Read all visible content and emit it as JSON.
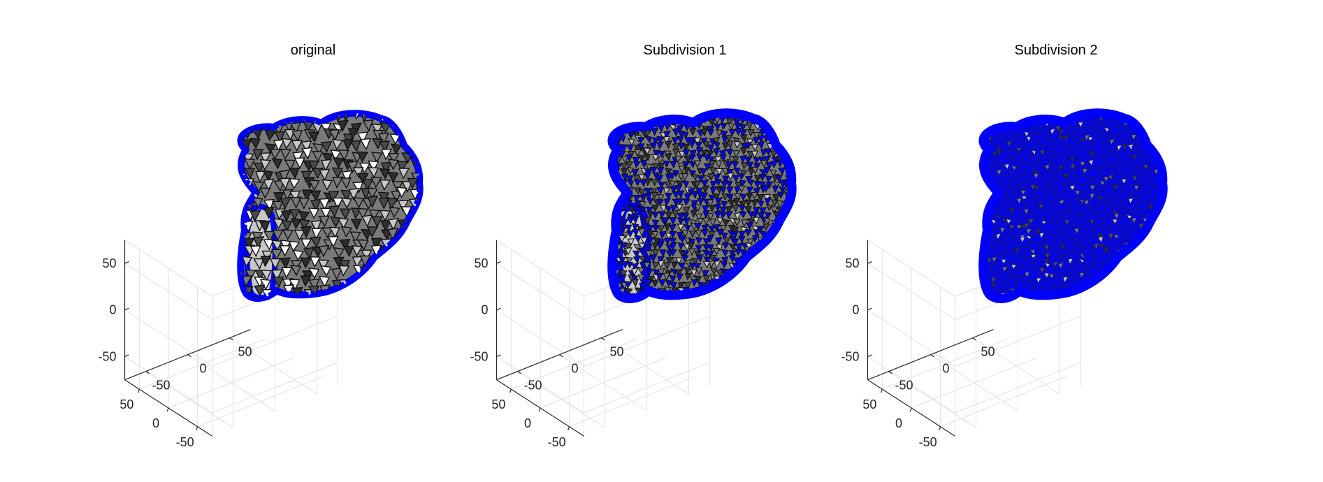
{
  "colors": {
    "background": "#ffffff",
    "edge": "#0000ff",
    "face_dark": "#2e2e2e",
    "face_mid": "#7a7a7a",
    "face_light": "#c8c8c8",
    "grid": "#e2e2e2",
    "axis": "#262626"
  },
  "chart_data": [
    {
      "type": "3d-surface-mesh",
      "title": "original",
      "subdivision_level": 0,
      "xlim": [
        -75,
        75
      ],
      "ylim": [
        -75,
        75
      ],
      "zlim": [
        -75,
        75
      ],
      "x_ticks": [
        -50,
        0,
        50
      ],
      "y_ticks": [
        -50,
        0,
        50
      ],
      "z_ticks": [
        -50,
        0,
        50
      ],
      "x_tick_labels": [
        "-50",
        "0",
        "50"
      ],
      "y_tick_labels": [
        "-50",
        "0",
        "50"
      ],
      "z_tick_labels": [
        "-50",
        "0",
        "50"
      ],
      "grid": true,
      "edge_color": "blue"
    },
    {
      "type": "3d-surface-mesh",
      "title": "Subdivision 1",
      "subdivision_level": 1,
      "xlim": [
        -75,
        75
      ],
      "ylim": [
        -75,
        75
      ],
      "zlim": [
        -75,
        75
      ],
      "x_ticks": [
        -50,
        0,
        50
      ],
      "y_ticks": [
        -50,
        0,
        50
      ],
      "z_ticks": [
        -50,
        0,
        50
      ],
      "x_tick_labels": [
        "-50",
        "0",
        "50"
      ],
      "y_tick_labels": [
        "-50",
        "0",
        "50"
      ],
      "z_tick_labels": [
        "-50",
        "0",
        "50"
      ],
      "grid": true,
      "edge_color": "blue"
    },
    {
      "type": "3d-surface-mesh",
      "title": "Subdivision 2",
      "subdivision_level": 2,
      "xlim": [
        -75,
        75
      ],
      "ylim": [
        -75,
        75
      ],
      "zlim": [
        -75,
        75
      ],
      "x_ticks": [
        -50,
        0,
        50
      ],
      "y_ticks": [
        -50,
        0,
        50
      ],
      "z_ticks": [
        -50,
        0,
        50
      ],
      "x_tick_labels": [
        "-50",
        "0",
        "50"
      ],
      "y_tick_labels": [
        "-50",
        "0",
        "50"
      ],
      "z_tick_labels": [
        "-50",
        "0",
        "50"
      ],
      "grid": true,
      "edge_color": "blue"
    }
  ]
}
